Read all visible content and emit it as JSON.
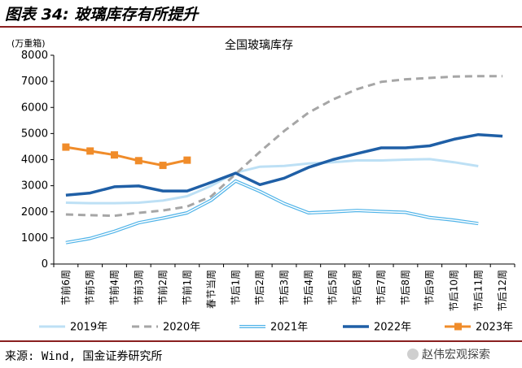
{
  "figure": {
    "title": "图表 34: 玻璃库存有所提升",
    "source": "来源: Wind, 国金证券研究所",
    "watermark": "赵伟宏观探索"
  },
  "chart_data": {
    "type": "line",
    "title": "全国玻璃库存",
    "unit_label": "(万重箱)",
    "xlabel": "",
    "ylabel": "",
    "ylim": [
      0,
      8000
    ],
    "yticks": [
      0,
      1000,
      2000,
      3000,
      4000,
      5000,
      6000,
      7000,
      8000
    ],
    "legend_position": "bottom",
    "categories": [
      "节前6周",
      "节前5周",
      "节前4周",
      "节前3周",
      "节前2周",
      "节前1周",
      "春节当周",
      "节后1周",
      "节后2周",
      "节后3周",
      "节后4周",
      "节后5周",
      "节后6周",
      "节后7周",
      "节后8周",
      "节后9周",
      "节后10周",
      "节后11周",
      "节后12周"
    ],
    "series": [
      {
        "name": "2019年",
        "color": "#bde0f5",
        "style": "solid",
        "width": 3,
        "values": [
          2350,
          2330,
          2330,
          2350,
          2430,
          2600,
          3000,
          3500,
          3730,
          3760,
          3850,
          3900,
          3970,
          3970,
          4000,
          4020,
          3900,
          3750,
          null
        ]
      },
      {
        "name": "2020年",
        "color": "#a6a6a6",
        "style": "dashed",
        "width": 3,
        "values": [
          1900,
          1870,
          1850,
          1960,
          2050,
          2200,
          2600,
          3450,
          4300,
          5100,
          5800,
          6300,
          6700,
          6980,
          7080,
          7130,
          7180,
          7200,
          7200
        ]
      },
      {
        "name": "2021年",
        "color": "#4fb3e8",
        "style": "double",
        "width": 3,
        "values": [
          820,
          980,
          1250,
          1580,
          1760,
          1960,
          2450,
          3180,
          2780,
          2320,
          1960,
          2000,
          2050,
          2010,
          1980,
          1780,
          1680,
          1550,
          null
        ]
      },
      {
        "name": "2022年",
        "color": "#1f5fa6",
        "style": "solid",
        "width": 3.5,
        "values": [
          2640,
          2720,
          2960,
          2990,
          2800,
          2800,
          3130,
          3480,
          3040,
          3290,
          3700,
          4000,
          4230,
          4450,
          4450,
          4530,
          4780,
          4960,
          4900
        ]
      },
      {
        "name": "2023年",
        "color": "#f08c2a",
        "style": "solid-marker",
        "width": 3,
        "values": [
          4480,
          4330,
          4180,
          3960,
          3780,
          3980,
          null,
          null,
          null,
          null,
          null,
          null,
          null,
          null,
          null,
          null,
          null,
          null,
          null
        ]
      }
    ]
  }
}
